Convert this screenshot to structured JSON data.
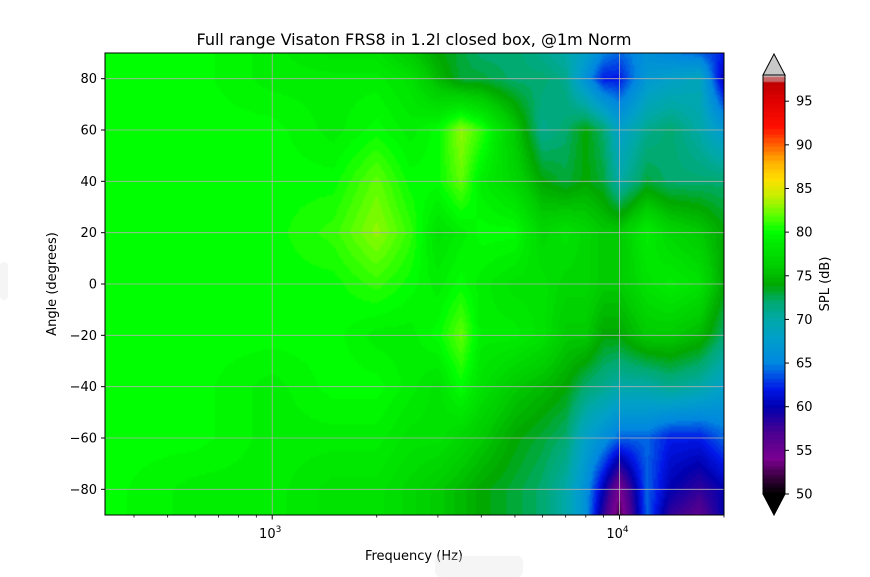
{
  "chart_data": {
    "type": "heatmap",
    "title": "Full range Visaton FRS8 in 1.2l closed box, @1m Norm",
    "xlabel": "Frequency (Hz)",
    "ylabel": "Angle (degrees)",
    "xscale": "log",
    "xlim": [
      330,
      20000
    ],
    "ylim": [
      -90,
      90
    ],
    "grid": true,
    "x_ticks": [
      {
        "value": 1000,
        "base": "10",
        "exp": "3"
      },
      {
        "value": 10000,
        "base": "10",
        "exp": "4"
      }
    ],
    "y_ticks": [
      {
        "value": 80,
        "label": "80"
      },
      {
        "value": 60,
        "label": "60"
      },
      {
        "value": 40,
        "label": "40"
      },
      {
        "value": 20,
        "label": "20"
      },
      {
        "value": 0,
        "label": "0"
      },
      {
        "value": -20,
        "label": "−20"
      },
      {
        "value": -40,
        "label": "−40"
      },
      {
        "value": -60,
        "label": "−60"
      },
      {
        "value": -80,
        "label": "−80"
      }
    ],
    "colorbar": {
      "label": "SPL (dB)",
      "range": [
        50,
        98
      ],
      "extend": "both",
      "ticks": [
        {
          "value": 95,
          "label": "95"
        },
        {
          "value": 90,
          "label": "90"
        },
        {
          "value": 85,
          "label": "85"
        },
        {
          "value": 80,
          "label": "80"
        },
        {
          "value": 75,
          "label": "75"
        },
        {
          "value": 70,
          "label": "70"
        },
        {
          "value": 65,
          "label": "65"
        },
        {
          "value": 60,
          "label": "60"
        },
        {
          "value": 55,
          "label": "55"
        },
        {
          "value": 50,
          "label": "50"
        }
      ],
      "colormap": [
        {
          "db": 50,
          "color": "#000000"
        },
        {
          "db": 52,
          "color": "#3a0040"
        },
        {
          "db": 54,
          "color": "#7a0090"
        },
        {
          "db": 57,
          "color": "#4a0090"
        },
        {
          "db": 60,
          "color": "#0000b0"
        },
        {
          "db": 62,
          "color": "#0018e8"
        },
        {
          "db": 65,
          "color": "#0088e0"
        },
        {
          "db": 68,
          "color": "#00a0c8"
        },
        {
          "db": 70,
          "color": "#00a8a8"
        },
        {
          "db": 72,
          "color": "#00aa70"
        },
        {
          "db": 74,
          "color": "#00a800"
        },
        {
          "db": 76,
          "color": "#00cc00"
        },
        {
          "db": 79,
          "color": "#00ee00"
        },
        {
          "db": 80,
          "color": "#00ff00"
        },
        {
          "db": 82,
          "color": "#60ff00"
        },
        {
          "db": 84,
          "color": "#c0f000"
        },
        {
          "db": 86,
          "color": "#ffe000"
        },
        {
          "db": 88,
          "color": "#ffb000"
        },
        {
          "db": 90,
          "color": "#ff6000"
        },
        {
          "db": 92,
          "color": "#ff1000"
        },
        {
          "db": 95,
          "color": "#e00000"
        },
        {
          "db": 97,
          "color": "#c00000"
        },
        {
          "db": 98,
          "color": "#cccccc"
        }
      ],
      "over_color": "#c8c8c8",
      "under_color": "#000000"
    },
    "angles": [
      90,
      80,
      60,
      40,
      20,
      0,
      -20,
      -40,
      -60,
      -80,
      -90
    ],
    "frequencies": [
      330,
      600,
      1000,
      1500,
      2000,
      2500,
      3000,
      3500,
      4000,
      5000,
      6000,
      7000,
      8000,
      9000,
      10000,
      12000,
      14000,
      17000,
      20000
    ],
    "spl_grid": [
      [
        80,
        80,
        79,
        78,
        78,
        76,
        74,
        73,
        72,
        72,
        71,
        70,
        68,
        65,
        64,
        66,
        65,
        64,
        62
      ],
      [
        80,
        80,
        79,
        79,
        79,
        78,
        75,
        73,
        73,
        72,
        72,
        71,
        66,
        62,
        62,
        67,
        68,
        69,
        60
      ],
      [
        80,
        80,
        80,
        79,
        80,
        79,
        80,
        83,
        81,
        76,
        71,
        72,
        74,
        72,
        68,
        71,
        72,
        70,
        67
      ],
      [
        80,
        80,
        80,
        80,
        82,
        80,
        80,
        82,
        79,
        77,
        74,
        73,
        74,
        73,
        70,
        73,
        72,
        72,
        72
      ],
      [
        80,
        80,
        80,
        81,
        83,
        81,
        78,
        79,
        80,
        80,
        77,
        78,
        77,
        76,
        76,
        79,
        77,
        76,
        74
      ],
      [
        80,
        80,
        80,
        80,
        81,
        80,
        79,
        80,
        79,
        78,
        78,
        77,
        77,
        76,
        76,
        78,
        79,
        78,
        74
      ],
      [
        80,
        80,
        80,
        80,
        79,
        79,
        80,
        82,
        79,
        79,
        78,
        76,
        76,
        74,
        74,
        76,
        76,
        75,
        72
      ],
      [
        80,
        80,
        79,
        80,
        80,
        79,
        78,
        80,
        78,
        76,
        75,
        74,
        72,
        71,
        70,
        70,
        71,
        70,
        68
      ],
      [
        80,
        80,
        79,
        79,
        79,
        78,
        78,
        77,
        76,
        74,
        73,
        72,
        68,
        66,
        64,
        64,
        62,
        62,
        64
      ],
      [
        80,
        79,
        79,
        78,
        78,
        77,
        76,
        75,
        74,
        73,
        72,
        70,
        66,
        60,
        54,
        64,
        60,
        58,
        60
      ],
      [
        80,
        79,
        79,
        78,
        78,
        77,
        76,
        75,
        74,
        73,
        72,
        70,
        66,
        58,
        52,
        64,
        58,
        56,
        60
      ]
    ]
  }
}
